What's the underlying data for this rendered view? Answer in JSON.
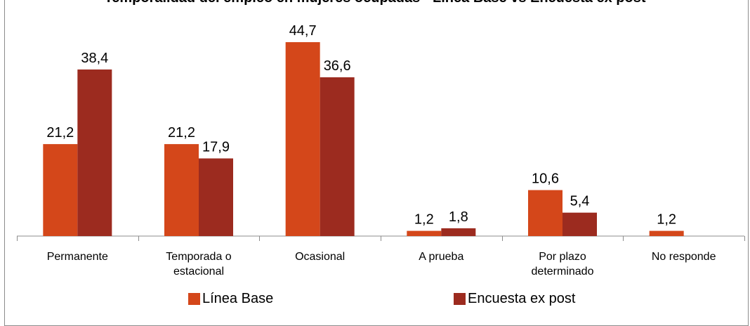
{
  "chart_data": {
    "type": "bar",
    "title": "Temporalidad del empleo en mujeres ocupadas - Línea Base vs Encuesta ex post",
    "categories": [
      "Permanente",
      "Temporada o estacional",
      "Ocasional",
      "A prueba",
      "Por plazo determinado",
      "No responde"
    ],
    "category_lines": [
      [
        "Permanente"
      ],
      [
        "Temporada o",
        "estacional"
      ],
      [
        "Ocasional"
      ],
      [
        "A prueba"
      ],
      [
        "Por plazo",
        "determinado"
      ],
      [
        "No responde"
      ]
    ],
    "series": [
      {
        "name": "Línea Base",
        "values": [
          21.2,
          21.2,
          44.7,
          1.2,
          10.6,
          1.2
        ],
        "labels": [
          "21,2",
          "21,2",
          "44,7",
          "1,2",
          "10,6",
          "1,2"
        ],
        "color": "#d4471a"
      },
      {
        "name": "Encuesta ex post",
        "values": [
          38.4,
          17.9,
          36.6,
          1.8,
          5.4,
          null
        ],
        "labels": [
          "38,4",
          "17,9",
          "36,6",
          "1,8",
          "5,4",
          ""
        ],
        "color": "#9c2b1f"
      }
    ],
    "ylim": [
      0,
      50
    ],
    "grid": false,
    "legend_position": "bottom"
  }
}
